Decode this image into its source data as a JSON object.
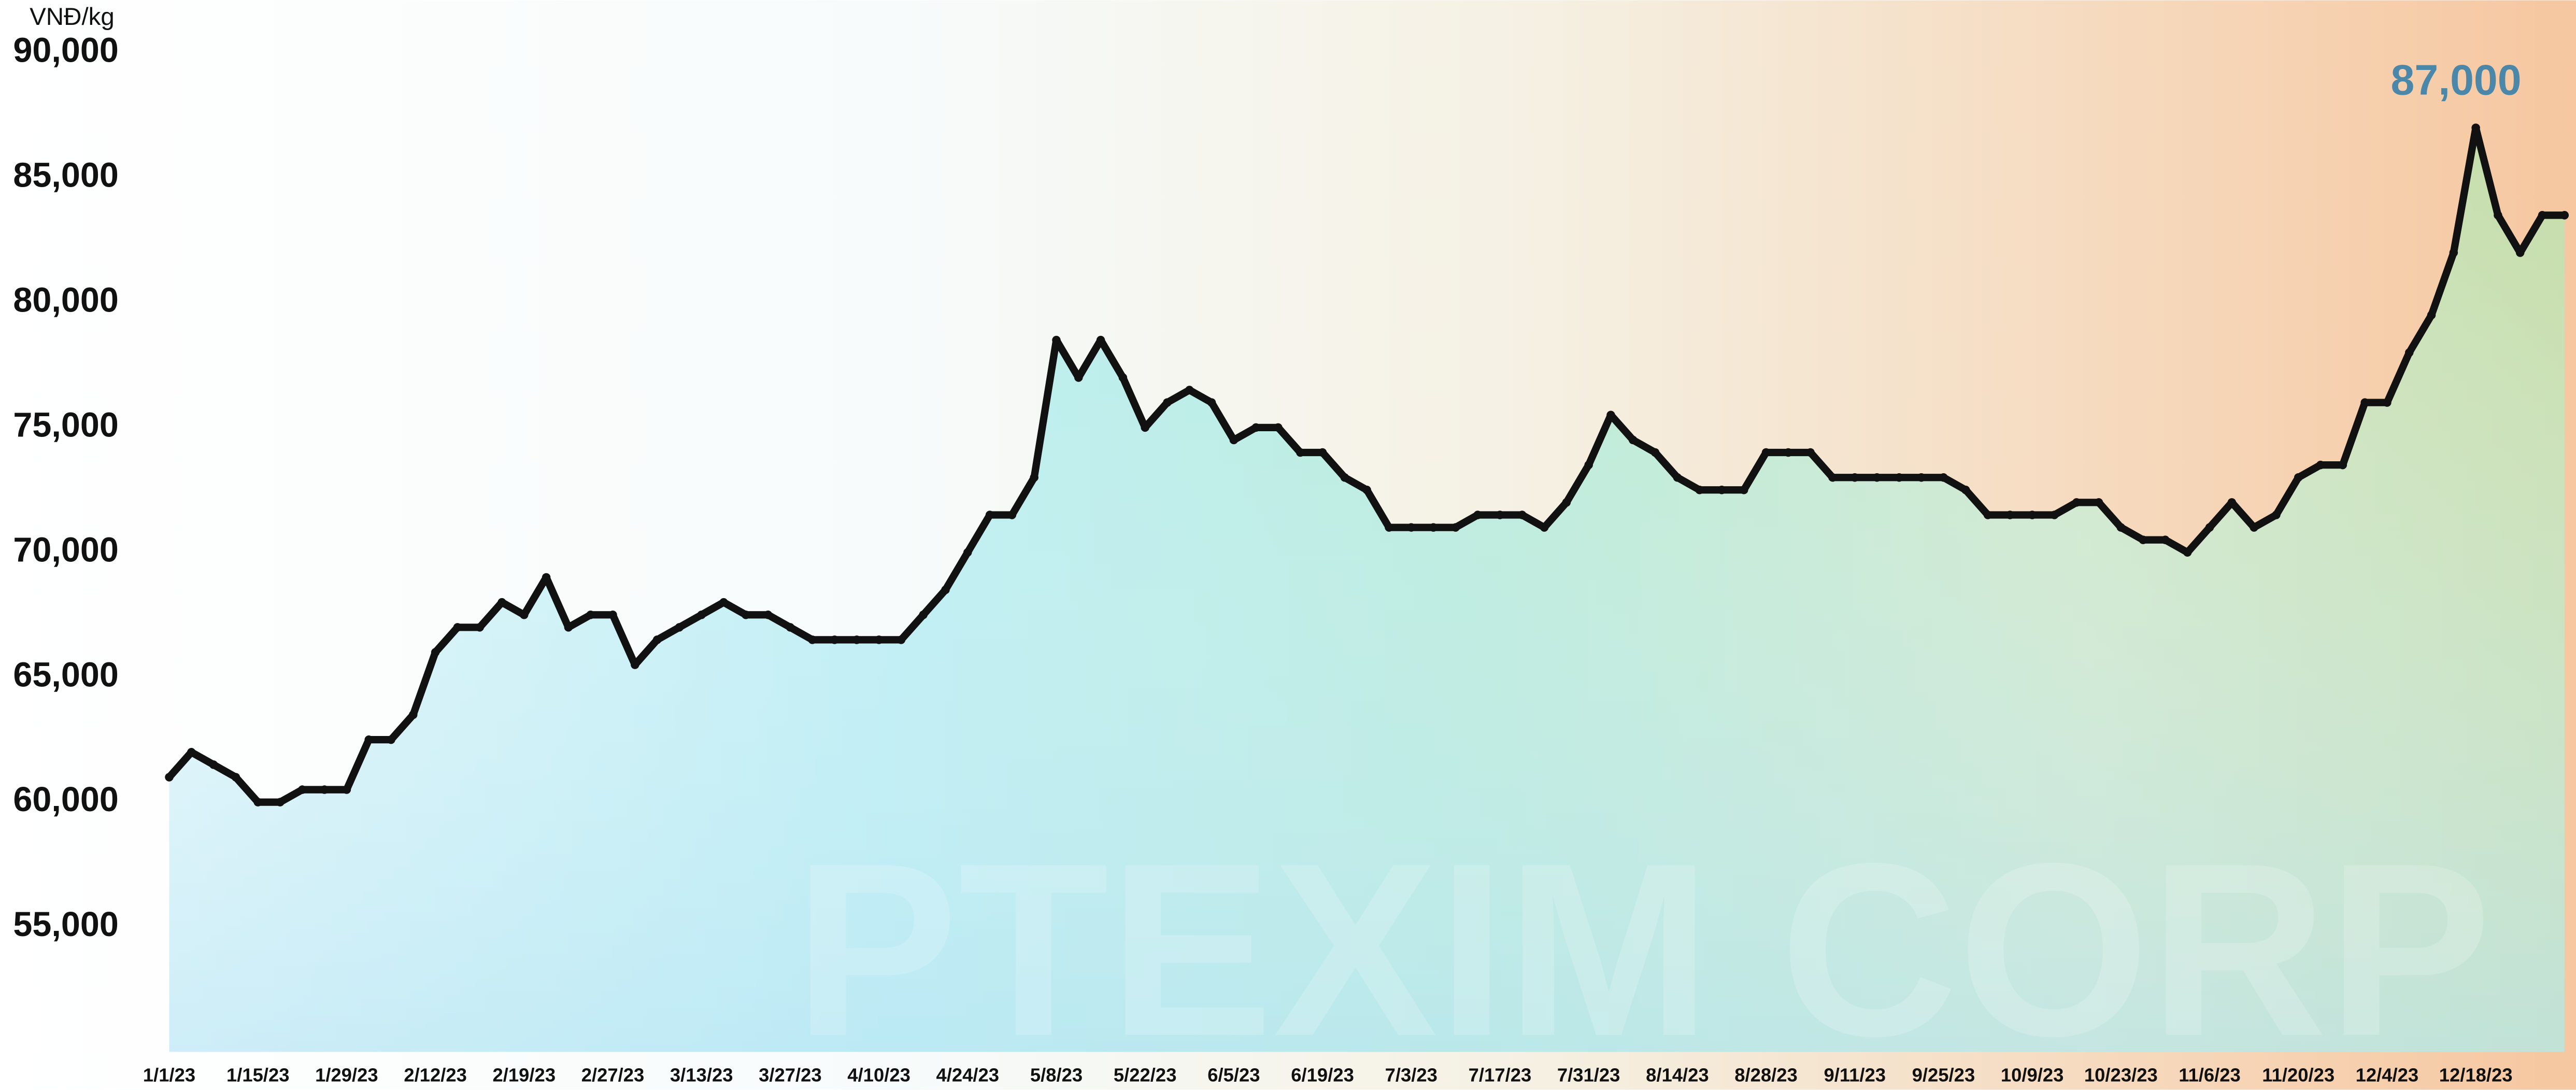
{
  "chart_data": {
    "type": "line",
    "y_unit": "VNĐ/kg",
    "watermark": "PTEXIM CORP",
    "categories": [
      "1/1/23",
      null,
      null,
      null,
      "1/15/23",
      null,
      null,
      null,
      "1/29/23",
      null,
      null,
      null,
      "2/12/23",
      null,
      null,
      null,
      "2/19/23",
      null,
      null,
      null,
      "2/27/23",
      null,
      null,
      null,
      "3/13/23",
      null,
      null,
      null,
      "3/27/23",
      null,
      null,
      null,
      "4/10/23",
      null,
      null,
      null,
      "4/24/23",
      null,
      null,
      null,
      "5/8/23",
      null,
      null,
      null,
      "5/22/23",
      null,
      null,
      null,
      "6/5/23",
      null,
      null,
      null,
      "6/19/23",
      null,
      null,
      null,
      "7/3/23",
      null,
      null,
      null,
      "7/17/23",
      null,
      null,
      null,
      "7/31/23",
      null,
      null,
      null,
      "8/14/23",
      null,
      null,
      null,
      "8/28/23",
      null,
      null,
      null,
      "9/11/23",
      null,
      null,
      null,
      "9/25/23",
      null,
      null,
      null,
      "10/9/23",
      null,
      null,
      null,
      "10/23/23",
      null,
      null,
      null,
      "11/6/23",
      null,
      null,
      null,
      "11/20/23",
      null,
      null,
      null,
      "12/4/23",
      null,
      null,
      null,
      "12/18/23",
      null,
      null,
      null,
      null
    ],
    "series": [
      {
        "color": "#111111",
        "values": [
          61000,
          62000,
          61500,
          61000,
          60000,
          60000,
          60500,
          60500,
          60500,
          62500,
          62500,
          63500,
          66000,
          67000,
          67000,
          68000,
          67500,
          69000,
          67000,
          67500,
          67500,
          65500,
          66500,
          67000,
          67500,
          68000,
          67500,
          67500,
          67000,
          66500,
          66500,
          66500,
          66500,
          66500,
          67500,
          68500,
          70000,
          71500,
          71500,
          73000,
          78500,
          77000,
          78500,
          77000,
          75000,
          76000,
          76500,
          76000,
          74500,
          75000,
          75000,
          74000,
          74000,
          73000,
          72500,
          71000,
          71000,
          71000,
          71000,
          71500,
          71500,
          71500,
          71000,
          72000,
          73500,
          75500,
          74500,
          74000,
          73000,
          72500,
          72500,
          72500,
          74000,
          74000,
          74000,
          73000,
          73000,
          73000,
          73000,
          73000,
          73000,
          72500,
          71500,
          71500,
          71500,
          71500,
          72000,
          72000,
          71000,
          70500,
          70500,
          70000,
          71000,
          72000,
          71000,
          71500,
          73000,
          73500,
          73500,
          76000,
          76000,
          78000,
          79500,
          82000,
          87000,
          83500,
          82000,
          83500,
          83500
        ],
        "value_labels": [
          null,
          null,
          null,
          null,
          null,
          null,
          null,
          null,
          null,
          null,
          null,
          null,
          null,
          null,
          null,
          null,
          null,
          null,
          null,
          null,
          null,
          null,
          null,
          null,
          null,
          null,
          null,
          null,
          null,
          null,
          null,
          null,
          null,
          null,
          null,
          null,
          null,
          null,
          null,
          null,
          null,
          null,
          null,
          null,
          null,
          null,
          null,
          null,
          null,
          null,
          null,
          null,
          null,
          null,
          null,
          null,
          null,
          null,
          null,
          null,
          null,
          null,
          null,
          null,
          null,
          null,
          null,
          null,
          null,
          null,
          null,
          null,
          null,
          null,
          null,
          null,
          null,
          null,
          null,
          null,
          null,
          null,
          null,
          null,
          null,
          null,
          null,
          null,
          null,
          null,
          null,
          null,
          null,
          null,
          null,
          null,
          null,
          null,
          null,
          null,
          null,
          null,
          null,
          null,
          "87,000",
          null,
          null,
          null,
          null
        ]
      }
    ],
    "ylim": [
      50000,
      90000
    ],
    "yticks": [
      {
        "value": 55000,
        "label": "55,000"
      },
      {
        "value": 60000,
        "label": "60,000"
      },
      {
        "value": 65000,
        "label": "65,000"
      },
      {
        "value": 70000,
        "label": "70,000"
      },
      {
        "value": 75000,
        "label": "75,000"
      },
      {
        "value": 80000,
        "label": "80,000"
      },
      {
        "value": 85000,
        "label": "85,000"
      },
      {
        "value": 90000,
        "label": "90,000"
      }
    ],
    "grid": false,
    "markers": true
  }
}
